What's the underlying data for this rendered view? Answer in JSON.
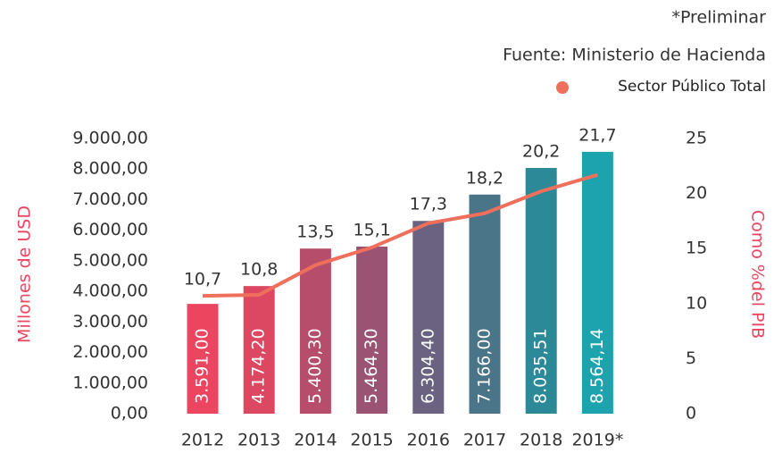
{
  "chart_data": {
    "type": "bar-line",
    "notes": [
      "*Preliminar",
      "Fuente: Ministerio de Hacienda"
    ],
    "categories": [
      "2012",
      "2013",
      "2014",
      "2015",
      "2016",
      "2017",
      "2018",
      "2019*"
    ],
    "series": [
      {
        "name": "Millones de USD",
        "type": "bar",
        "axis": "y",
        "colors": [
          "#ec4560",
          "#dc4862",
          "#b64d6a",
          "#9a5373",
          "#6a6280",
          "#4a7488",
          "#2c8a98",
          "#1ca3ae"
        ],
        "values": [
          3591.0,
          4174.2,
          5400.3,
          5464.3,
          6304.4,
          7166.0,
          8035.51,
          8564.14
        ],
        "value_labels": [
          "3.591,00",
          "4.174,20",
          "5.400,30",
          "5.464,30",
          "6.304,40",
          "7.166,00",
          "8.035,51",
          "8.564,14"
        ]
      },
      {
        "name": "Sector Público Total",
        "type": "line",
        "axis": "y2",
        "color": "#ee6f5c",
        "values": [
          10.7,
          10.8,
          13.5,
          15.1,
          17.3,
          18.2,
          20.2,
          21.7
        ],
        "value_labels": [
          "10,7",
          "10,8",
          "13,5",
          "15,1",
          "17,3",
          "18,2",
          "20,2",
          "21,7"
        ]
      }
    ],
    "ylabel": "Millones de USD",
    "y2label": "Como %del PIB",
    "ylim": [
      0,
      9000
    ],
    "yticks": [
      {
        "value": 0,
        "label": "0,00"
      },
      {
        "value": 1000,
        "label": "1.000,00"
      },
      {
        "value": 2000,
        "label": "2.000,00"
      },
      {
        "value": 3000,
        "label": "3.000,00"
      },
      {
        "value": 4000,
        "label": "4.000,00"
      },
      {
        "value": 5000,
        "label": "5.000,00"
      },
      {
        "value": 6000,
        "label": "6.000,00"
      },
      {
        "value": 7000,
        "label": "7.000,00"
      },
      {
        "value": 8000,
        "label": "8.000,00"
      },
      {
        "value": 9000,
        "label": "9.000,00"
      }
    ],
    "y2lim": [
      0,
      25
    ],
    "y2ticks": [
      0,
      5,
      10,
      15,
      20,
      25
    ],
    "legend": "top-right"
  }
}
